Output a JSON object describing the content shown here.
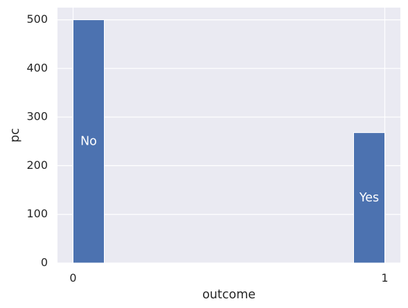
{
  "chart_data": {
    "type": "bar",
    "categories": [
      "0",
      "1"
    ],
    "x": [
      0,
      1
    ],
    "values": [
      500,
      268
    ],
    "bar_labels": [
      "No",
      "Yes"
    ],
    "title": "",
    "xlabel": "outcome",
    "ylabel": "pc",
    "xlim": [
      -0.05,
      1.05
    ],
    "ylim": [
      0,
      525
    ],
    "xticks": [
      0,
      1
    ],
    "yticks": [
      0,
      100,
      200,
      300,
      400,
      500
    ],
    "grid": true,
    "bar_color": "#4c72b0",
    "background_color": "#eaeaf2",
    "grid_color": "#ffffff"
  }
}
